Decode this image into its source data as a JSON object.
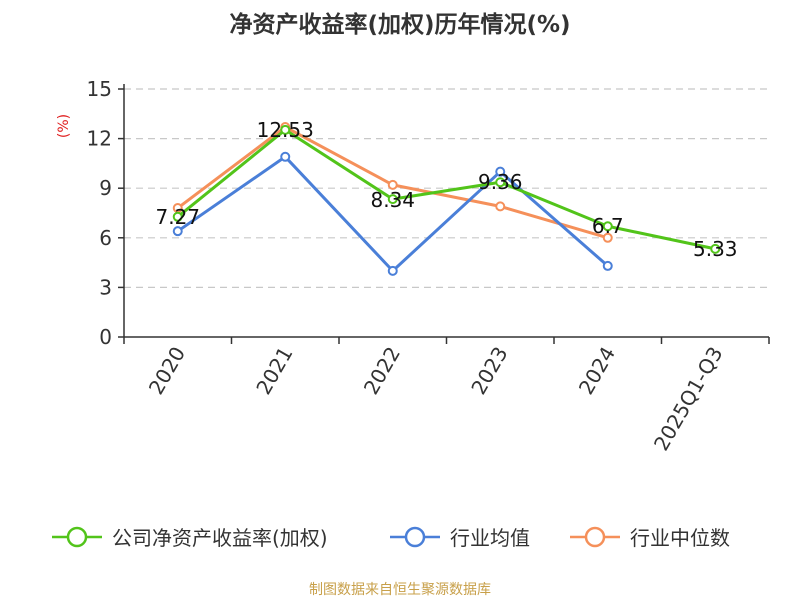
{
  "chart_data": {
    "type": "line",
    "title": "净资产收益率(加权)历年情况(%)",
    "ylabel": "(%)",
    "categories": [
      "2020",
      "2021",
      "2022",
      "2023",
      "2024",
      "2025Q1-Q3"
    ],
    "ylim": [
      0,
      15
    ],
    "yticks": [
      0,
      3,
      6,
      9,
      12,
      15
    ],
    "grid": true,
    "legend_position": "bottom",
    "series": [
      {
        "name": "公司净资产收益率(加权)",
        "color": "#52c41a",
        "values": [
          7.27,
          12.53,
          8.34,
          9.36,
          6.7,
          5.33
        ],
        "labels": [
          "7.27",
          "12.53",
          "8.34",
          "9.36",
          "6.7",
          "5.33"
        ]
      },
      {
        "name": "行业均值",
        "color": "#4a7fd8",
        "values": [
          6.4,
          10.9,
          4.0,
          10.0,
          4.3,
          null
        ]
      },
      {
        "name": "行业中位数",
        "color": "#f5905a",
        "values": [
          7.8,
          12.7,
          9.2,
          7.9,
          6.0,
          null
        ]
      }
    ]
  },
  "source": {
    "text": "制图数据来自恒生聚源数据库",
    "color": "#c8a04a"
  },
  "ylabel_color": "#e02020"
}
